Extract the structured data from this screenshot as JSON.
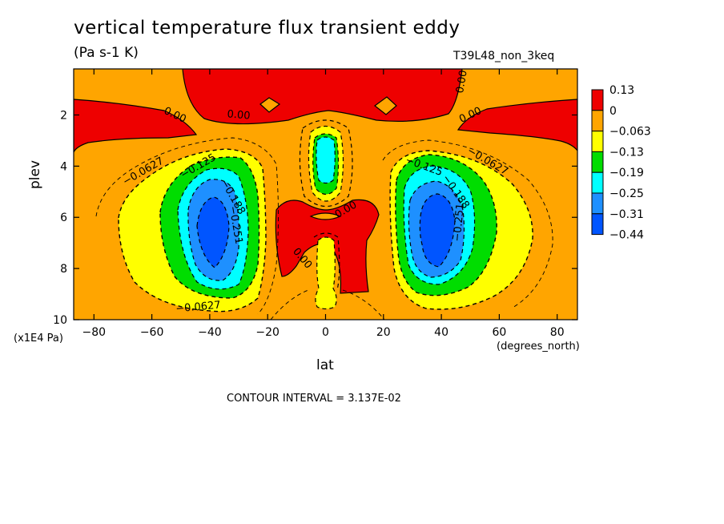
{
  "chart_data": {
    "type": "contour",
    "title": "vertical temperature flux transient eddy",
    "subtitle": "(Pa s-1 K)",
    "dataset_label": "T39L48_non_3keq",
    "xlabel": "lat",
    "ylabel": "plev",
    "x_unit_label": "(degrees_north)",
    "y_unit_label": "(x1E4 Pa)",
    "xlim": [
      -87,
      87
    ],
    "ylim": [
      10,
      0.2
    ],
    "x_ticks": [
      -80,
      -60,
      -40,
      -20,
      0,
      20,
      40,
      60,
      80
    ],
    "x_tick_labels": [
      "-80",
      "-60",
      "-40",
      "-20",
      "0",
      "20",
      "40",
      "60",
      "80"
    ],
    "y_ticks": [
      2,
      4,
      6,
      8,
      10
    ],
    "y_tick_labels": [
      "2",
      "4",
      "6",
      "8",
      "10"
    ],
    "contour_interval_text": "CONTOUR INTERVAL = 3.137E-02",
    "legend": {
      "placement": "right",
      "labels": [
        "0.13",
        "0",
        "-0.063",
        "-0.13",
        "-0.19",
        "-0.25",
        "-0.31",
        "-0.44"
      ],
      "colors": [
        "#ee0000",
        "#ffa500",
        "#ffff00",
        "#00dd00",
        "#00ffff",
        "#1e90ff",
        "#0055ff"
      ]
    },
    "background_color": "#ffa500",
    "contour_labels": [
      {
        "text": "0.00",
        "lat": -52,
        "plev": 2.0,
        "angle": 25
      },
      {
        "text": "0.00",
        "lat": -30,
        "plev": 2.0,
        "angle": 5
      },
      {
        "text": "0.00",
        "lat": 50,
        "plev": 2.0,
        "angle": -25
      },
      {
        "text": "0.00",
        "lat": 47,
        "plev": 0.7,
        "angle": -80
      },
      {
        "text": "0.00",
        "lat": 7,
        "plev": 5.7,
        "angle": -30
      },
      {
        "text": "0.00",
        "lat": -8,
        "plev": 7.6,
        "angle": 50
      },
      {
        "text": "-0.0627",
        "lat": -63,
        "plev": 4.2,
        "angle": -30
      },
      {
        "text": "-0.0627",
        "lat": 56,
        "plev": 3.8,
        "angle": 30
      },
      {
        "text": "-0.0627",
        "lat": -44,
        "plev": 9.5,
        "angle": -5
      },
      {
        "text": "-0.125",
        "lat": -44,
        "plev": 4.0,
        "angle": -30
      },
      {
        "text": "-0.125",
        "lat": 34,
        "plev": 4.0,
        "angle": 20
      },
      {
        "text": "-0.188",
        "lat": -32,
        "plev": 5.2,
        "angle": 60
      },
      {
        "text": "-0.188",
        "lat": 45,
        "plev": 5.0,
        "angle": 55
      },
      {
        "text": "-0.251",
        "lat": -31,
        "plev": 6.3,
        "angle": 80
      },
      {
        "text": "-0.251",
        "lat": 46,
        "plev": 6.2,
        "angle": -85
      }
    ]
  }
}
